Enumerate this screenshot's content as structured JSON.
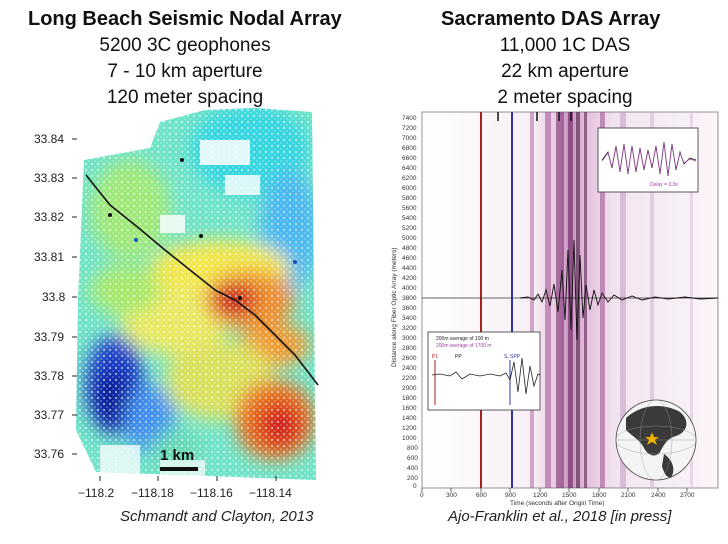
{
  "left": {
    "title": "Long Beach Seismic Nodal Array",
    "lines": [
      "5200 3C geophones",
      "7 - 10 km aperture",
      "120 meter spacing"
    ],
    "credit": "Schmandt and Clayton, 2013",
    "y_ticks": [
      "33.84",
      "33.83",
      "33.82",
      "33.81",
      "33.8",
      "33.79",
      "33.78",
      "33.77",
      "33.76"
    ],
    "x_ticks": [
      "−118.2",
      "−118.18",
      "−118.16",
      "−118.14"
    ],
    "scale_bar": "1 km"
  },
  "right": {
    "title": "Sacramento DAS Array",
    "lines": [
      "11,000 1C DAS",
      "22 km aperture",
      "2 meter spacing"
    ],
    "credit": "Ajo-Franklin et al., 2018 [in press]",
    "y_ticks": [
      "7400",
      "7200",
      "7000",
      "6800",
      "6600",
      "6400",
      "6200",
      "6000",
      "5800",
      "5600",
      "5400",
      "5200",
      "5000",
      "4800",
      "4600",
      "4400",
      "4200",
      "4000",
      "3800",
      "3600",
      "3400",
      "3200",
      "3000",
      "2800",
      "2600",
      "2400",
      "2200",
      "2000",
      "1800",
      "1600",
      "1400",
      "1200",
      "1000",
      "800",
      "600",
      "400",
      "200",
      "0"
    ],
    "x_ticks": [
      "0",
      "300",
      "600",
      "900",
      "1200",
      "1500",
      "1800",
      "2100",
      "2400",
      "2700"
    ],
    "ylabel": "Distance along Fiber Optic Array (meters)",
    "xlabel": "Time (seconds after Origin Time)",
    "inset_top_legend": "Delay = 3.3s",
    "inset_bottom_legend1": "200m average of 100 m",
    "inset_bottom_legend2": "200m average of 1700 m",
    "inset_bottom_labels": [
      "P1",
      "PP",
      "S, SPP"
    ]
  }
}
